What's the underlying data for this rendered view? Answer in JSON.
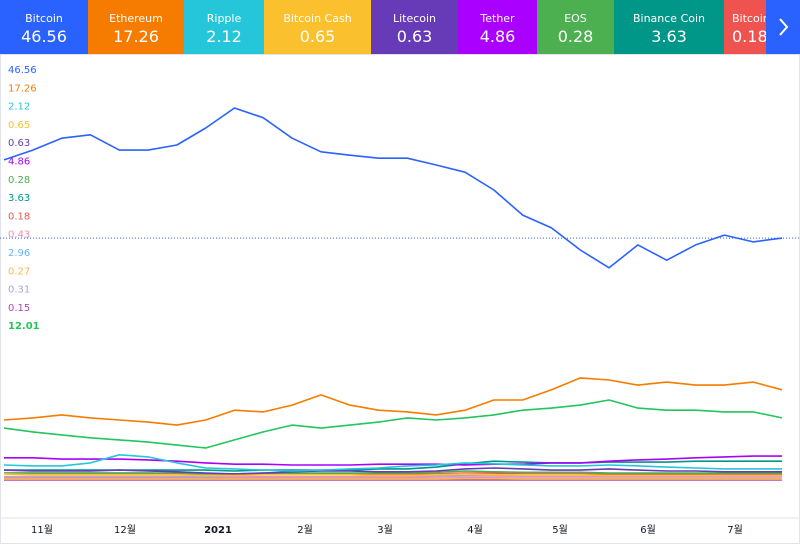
{
  "chart_data": {
    "type": "line",
    "x_labels": [
      "11월",
      "12월",
      "2021",
      "2월",
      "3월",
      "4월",
      "5월",
      "6월",
      "7월"
    ],
    "ylim": [
      0,
      100
    ],
    "series": [
      {
        "name": "Bitcoin",
        "color": "#2962ff",
        "last_value": 46.56,
        "values": [
          76.5,
          78.8,
          81.6,
          82.4,
          78.8,
          78.8,
          80,
          84,
          88.7,
          86.4,
          81.6,
          78.4,
          77.6,
          76.9,
          76.9,
          75.3,
          73.6,
          69.4,
          63.5,
          60.5,
          55.3,
          51.1,
          56.5,
          52.9,
          56.5,
          58.8,
          57.2,
          58.1
        ]
      },
      {
        "name": "Ethereum",
        "color": "#f57c00",
        "last_value": 17.26,
        "values": [
          15.3,
          15.8,
          16.5,
          15.8,
          15.3,
          14.8,
          14.1,
          15.3,
          17.6,
          17.2,
          18.8,
          21.2,
          18.8,
          17.6,
          17.2,
          16.5,
          17.6,
          20,
          20,
          22.4,
          25.2,
          24.7,
          23.5,
          24.2,
          23.5,
          23.5,
          24.2,
          22.4
        ]
      },
      {
        "name": "Ripple",
        "color": "#26c6da",
        "last_value": 2.12,
        "values": [
          4.7,
          4.5,
          4.5,
          5.2,
          7.1,
          6.6,
          5.2,
          4,
          3.8,
          3.5,
          3.3,
          3.5,
          3.8,
          4,
          4.5,
          4.7,
          5.2,
          5,
          4.7,
          4.5,
          4.5,
          4.7,
          4.5,
          4.2,
          4,
          3.8,
          3.8,
          3.8
        ]
      },
      {
        "name": "Bitcoin Cash",
        "color": "#fbc02d",
        "last_value": 0.65,
        "values": [
          2.6,
          2.4,
          2.4,
          2.4,
          2.4,
          2.4,
          2.4,
          2.2,
          2.2,
          2.4,
          2.4,
          2.4,
          2.4,
          2.2,
          2.2,
          2.4,
          2.6,
          2.4,
          2.4,
          2.4,
          2.4,
          2.2,
          2.2,
          2.2,
          2.2,
          2.2,
          2.2,
          2.2
        ]
      },
      {
        "name": "Litecoin",
        "color": "#673ab7",
        "last_value": 0.63,
        "values": [
          3.5,
          3.3,
          3.3,
          3.3,
          3.5,
          3.3,
          3.1,
          2.8,
          2.6,
          2.8,
          3.1,
          3.3,
          3.3,
          3.1,
          3.1,
          3.3,
          3.8,
          4,
          3.8,
          3.5,
          3.5,
          3.8,
          3.5,
          3.3,
          3.3,
          3.1,
          3.1,
          3.1
        ]
      },
      {
        "name": "Tether",
        "color": "#aa00ff",
        "last_value": 4.86,
        "values": [
          6.4,
          6.4,
          6.1,
          6.1,
          6.1,
          5.9,
          5.6,
          5.2,
          4.9,
          4.9,
          4.7,
          4.7,
          4.7,
          4.9,
          4.9,
          4.9,
          4.7,
          4.9,
          4.9,
          5.2,
          5.2,
          5.6,
          5.9,
          6.1,
          6.4,
          6.6,
          6.8,
          6.8
        ]
      },
      {
        "name": "EOS",
        "color": "#4caf50",
        "last_value": 0.28,
        "values": [
          2.8,
          2.8,
          2.8,
          2.8,
          2.8,
          2.8,
          2.6,
          2.6,
          2.6,
          2.8,
          2.8,
          2.8,
          2.8,
          2.8,
          2.8,
          3,
          3.3,
          3.1,
          3,
          3,
          3,
          2.8,
          2.8,
          2.8,
          2.8,
          2.8,
          2.8,
          2.8
        ]
      },
      {
        "name": "Binance Coin",
        "color": "#009688",
        "last_value": 3.63,
        "values": [
          3.5,
          3.5,
          3.5,
          3.5,
          3.5,
          3.5,
          3.5,
          3.5,
          3.3,
          3.5,
          3.5,
          3.5,
          3.5,
          3.8,
          3.8,
          4.2,
          5,
          5.6,
          5.4,
          5.2,
          5.2,
          5.4,
          5.4,
          5.4,
          5.6,
          5.6,
          5.6,
          5.6
        ]
      },
      {
        "name": "Bitcoin SV",
        "color": "#ef5350",
        "last_value": 0.18,
        "values": [
          2.8,
          2.8,
          2.8,
          2.8,
          2.8,
          2.8,
          2.8,
          2.6,
          2.6,
          2.6,
          2.6,
          2.6,
          2.6,
          2.6,
          2.6,
          2.6,
          2.8,
          2.8,
          2.6,
          2.6,
          2.6,
          2.6,
          2.6,
          2.6,
          2.6,
          2.6,
          2.6,
          2.6
        ]
      },
      {
        "color": "#f48fb1",
        "last_value": 0.43,
        "values": [
          2,
          2,
          2,
          2,
          2,
          2,
          2,
          2,
          1.9,
          1.9,
          1.9,
          1.9,
          1.9,
          1.9,
          1.9,
          2,
          2.1,
          2.1,
          2,
          2,
          2,
          2,
          2,
          2,
          2,
          2,
          2,
          2
        ]
      },
      {
        "color": "#64b5f6",
        "last_value": 2.96,
        "values": [
          1.9,
          1.9,
          1.9,
          1.9,
          1.9,
          1.9,
          1.9,
          1.9,
          1.9,
          1.9,
          1.9,
          1.9,
          1.9,
          1.9,
          2,
          2.1,
          2.2,
          2.4,
          2.4,
          2.4,
          2.4,
          2.4,
          2.4,
          2.4,
          2.4,
          2.4,
          2.4,
          2.4
        ]
      },
      {
        "color": "#ffb74d",
        "last_value": 0.27,
        "values": [
          1.4,
          1.4,
          1.4,
          1.4,
          1.4,
          1.4,
          1.4,
          1.4,
          1.4,
          1.4,
          1.4,
          1.4,
          1.4,
          1.4,
          1.4,
          1.4,
          1.5,
          1.5,
          1.4,
          1.4,
          1.4,
          1.4,
          1.4,
          1.4,
          1.4,
          1.4,
          1.4,
          1.4
        ]
      },
      {
        "color": "#b39ddb",
        "last_value": 0.31,
        "values": [
          1.6,
          1.6,
          1.6,
          1.6,
          1.6,
          1.6,
          1.6,
          1.6,
          1.6,
          1.6,
          1.6,
          1.6,
          1.6,
          1.6,
          1.6,
          1.6,
          1.7,
          1.7,
          1.6,
          1.6,
          1.6,
          1.6,
          1.6,
          1.6,
          1.6,
          1.6,
          1.6,
          1.6
        ]
      },
      {
        "color": "#ab47bc",
        "last_value": 0.15,
        "values": [
          1.2,
          1.2,
          1.2,
          1.2,
          1.2,
          1.2,
          1.2,
          1.2,
          1.2,
          1.2,
          1.2,
          1.2,
          1.2,
          1.2,
          1.2,
          1.2,
          1.2,
          1.2,
          1.2,
          1.2,
          1.2,
          1.2,
          1.2,
          1.2,
          1.2,
          1.2,
          1.2,
          1.2
        ]
      },
      {
        "color": "#22c55e",
        "last_value": 12.01,
        "values": [
          13.4,
          12.5,
          11.8,
          11.1,
          10.6,
          10.1,
          9.4,
          8.7,
          10.6,
          12.5,
          14.1,
          13.4,
          14.1,
          14.8,
          15.8,
          15.3,
          15.8,
          16.5,
          17.6,
          18.1,
          18.8,
          20,
          18.1,
          17.6,
          17.6,
          17.2,
          17.2,
          15.8
        ]
      }
    ]
  }
}
